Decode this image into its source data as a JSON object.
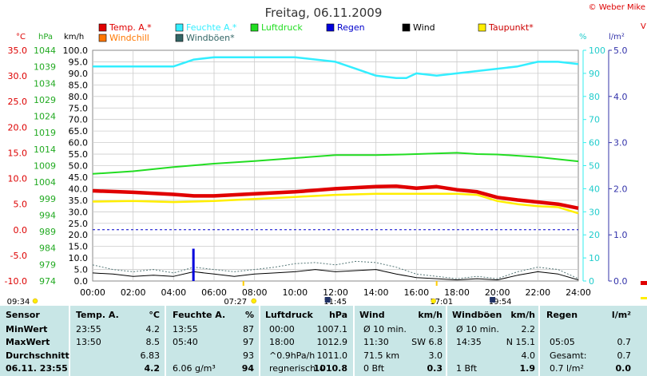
{
  "title": "Freitag, 06.11.2009",
  "copyright": "© Weber Mike",
  "colors": {
    "temp": "#e00000",
    "humidity": "#33eeff",
    "pressure": "#22dd22",
    "rain": "#0000dd",
    "wind": "#000000",
    "dewpoint": "#ffee00",
    "windchill": "#ff7700",
    "gust": "#336666",
    "table_bg": "#c8e6e6",
    "right_axis_blue": "#3333aa"
  },
  "legend": [
    {
      "label": "Temp. A.*",
      "color": "#e00000"
    },
    {
      "label": "Feuchte A.*",
      "color": "#33eeff"
    },
    {
      "label": "Luftdruck",
      "color": "#22dd22"
    },
    {
      "label": "Regen",
      "color": "#0000dd"
    },
    {
      "label": "Wind",
      "color": "#000000"
    },
    {
      "label": "Taupunkt*",
      "color": "#ffee00"
    },
    {
      "label": "Windchill",
      "color": "#ff7700"
    },
    {
      "label": "Windböen*",
      "color": "#336666"
    }
  ],
  "axis_units": {
    "temp": "°C",
    "pressure": "hPa",
    "wind": "km/h",
    "humidity": "%",
    "rain": "l/m²"
  },
  "chart_data": {
    "type": "line",
    "x_ticks": [
      "00:00",
      "02:00",
      "04:00",
      "06:00",
      "08:00",
      "10:00",
      "12:00",
      "14:00",
      "16:00",
      "18:00",
      "20:00",
      "22:00",
      "24:00"
    ],
    "axes": {
      "temp": {
        "ticks": [
          "35.0",
          "30.0",
          "25.0",
          "20.0",
          "15.0",
          "10.0",
          "5.0",
          "0.0",
          "-5.0",
          "-10.0"
        ],
        "ylim": [
          -10,
          35
        ]
      },
      "pressure": {
        "ticks": [
          "1044",
          "1039",
          "1034",
          "1029",
          "1024",
          "1019",
          "1014",
          "1009",
          "1004",
          "999",
          "994",
          "989",
          "984",
          "979",
          "974"
        ],
        "ylim": [
          974,
          1044
        ]
      },
      "wind": {
        "ticks": [
          "100.0",
          "95.0",
          "90.0",
          "85.0",
          "80.0",
          "75.0",
          "70.0",
          "65.0",
          "60.0",
          "55.0",
          "50.0",
          "45.0",
          "40.0",
          "35.0",
          "30.0",
          "25.0",
          "20.0",
          "15.0",
          "10.0",
          "5.0",
          "0.0"
        ],
        "ylim": [
          0,
          100
        ]
      },
      "humidity": {
        "ticks": [
          "100",
          "90",
          "80",
          "70",
          "60",
          "50",
          "40",
          "30",
          "20",
          "10",
          "0"
        ],
        "ylim": [
          0,
          100
        ]
      },
      "rain": {
        "ticks": [
          "5.0",
          "4.0",
          "3.0",
          "2.0",
          "1.0",
          "0.0"
        ],
        "ylim": [
          0,
          5
        ]
      }
    },
    "series": [
      {
        "name": "Feuchte A.*",
        "axis": "humidity",
        "x": [
          0,
          4,
          5,
          6,
          10,
          12,
          13,
          14,
          15,
          15.5,
          16,
          17,
          18,
          19,
          20,
          21,
          22,
          23,
          24
        ],
        "values": [
          93,
          93,
          96,
          97,
          97,
          95,
          92,
          89,
          88,
          88,
          90,
          89,
          90,
          91,
          92,
          93,
          95,
          95,
          94
        ]
      },
      {
        "name": "Luftdruck",
        "axis": "pressure",
        "x": [
          0,
          2,
          4,
          6,
          8,
          10,
          12,
          14,
          16,
          18,
          19,
          20,
          22,
          24
        ],
        "values": [
          1006.5,
          1007.3,
          1008.6,
          1009.6,
          1010.4,
          1011.3,
          1012.2,
          1012.2,
          1012.5,
          1012.9,
          1012.5,
          1012.4,
          1011.6,
          1010.3
        ]
      },
      {
        "name": "Temp. A.*",
        "axis": "temp",
        "x": [
          0,
          2,
          4,
          5,
          6,
          8,
          10,
          12,
          14,
          15,
          16,
          17,
          18,
          19,
          20,
          21,
          22,
          23,
          24
        ],
        "values": [
          7.6,
          7.3,
          6.9,
          6.6,
          6.6,
          7.0,
          7.4,
          8.0,
          8.4,
          8.5,
          8.1,
          8.4,
          7.8,
          7.4,
          6.3,
          5.8,
          5.4,
          5.0,
          4.2
        ]
      },
      {
        "name": "Taupunkt*",
        "axis": "temp",
        "x": [
          0,
          2,
          4,
          6,
          8,
          10,
          12,
          14,
          16,
          18,
          19,
          20,
          21,
          22,
          23,
          24
        ],
        "values": [
          5.5,
          5.6,
          5.4,
          5.6,
          6.0,
          6.4,
          6.8,
          7.0,
          7.0,
          7.0,
          6.8,
          5.6,
          5.0,
          4.6,
          4.4,
          3.2
        ]
      },
      {
        "name": "Regen",
        "axis": "rain",
        "type": "bar",
        "x": [
          4.98
        ],
        "values": [
          0.7
        ]
      },
      {
        "name": "Wind",
        "axis": "wind",
        "x": [
          0,
          1,
          2,
          3,
          4,
          5,
          6,
          7,
          8,
          9,
          10,
          11,
          12,
          13,
          14,
          15,
          16,
          17,
          18,
          19,
          20,
          21,
          22,
          23,
          24
        ],
        "values": [
          3.5,
          3,
          2,
          2.5,
          2,
          4,
          3,
          2,
          3,
          3.5,
          4,
          5,
          4,
          4.5,
          5,
          3,
          1.5,
          1,
          0.5,
          1,
          0.5,
          2.5,
          4,
          3,
          0.5
        ]
      },
      {
        "name": "Windböen*",
        "axis": "wind",
        "x": [
          0,
          1,
          2,
          3,
          4,
          5,
          6,
          7,
          8,
          9,
          10,
          11,
          12,
          13,
          14,
          15,
          16,
          17,
          18,
          19,
          20,
          21,
          22,
          23,
          24
        ],
        "values": [
          7,
          5,
          4,
          5,
          3.5,
          6,
          5,
          4,
          5,
          6,
          7.5,
          8,
          7,
          8.5,
          8,
          6,
          3,
          2,
          1,
          2,
          1,
          4,
          6,
          5,
          1
        ]
      }
    ],
    "reference_line": {
      "axis": "temp",
      "value": 0
    },
    "events": [
      {
        "label": "09:34",
        "kind": "sunrise-sun"
      },
      {
        "label": "07:27",
        "kind": "sunrise"
      },
      {
        "label": "11:45",
        "kind": "moon"
      },
      {
        "label": "17:01",
        "kind": "sunset"
      },
      {
        "label": "19:54",
        "kind": "moon"
      }
    ]
  },
  "table": {
    "headers": {
      "sensor": "Sensor",
      "temp": "Temp. A.",
      "temp_unit": "°C",
      "hum": "Feuchte A.",
      "hum_unit": "%",
      "press": "Luftdruck",
      "press_unit": "hPa",
      "wind": "Wind",
      "wind_unit": "km/h",
      "gust": "Windböen",
      "gust_unit": "km/h",
      "rain": "Regen",
      "rain_unit": "l/m²"
    },
    "rows": [
      {
        "label": "MinWert",
        "temp_time": "23:55",
        "temp_val": "4.2",
        "hum_time": "13:55",
        "hum_val": "87",
        "press_time": "00:00",
        "press_val": "1007.1",
        "wind_a": "Ø 10 min.",
        "wind_b": "0.3",
        "gust_a": "Ø 10 min.",
        "gust_b": "2.2",
        "rain_a": "",
        "rain_b": ""
      },
      {
        "label": "MaxWert",
        "temp_time": "13:50",
        "temp_val": "8.5",
        "hum_time": "05:40",
        "hum_val": "97",
        "press_time": "18:00",
        "press_val": "1012.9",
        "wind_a": "11:30",
        "wind_b": "SW 6.8",
        "gust_a": "14:35",
        "gust_b": "N 15.1",
        "rain_a": "05:05",
        "rain_b": "0.7"
      },
      {
        "label": "Durchschnitt",
        "temp_time": "",
        "temp_val": "6.83",
        "hum_time": "",
        "hum_val": "93",
        "press_time": "^0.9hPa/h",
        "press_val": "1011.0",
        "wind_a": "71.5 km",
        "wind_b": "3.0",
        "gust_a": "",
        "gust_b": "4.0",
        "rain_a": "Gesamt:",
        "rain_b": "0.7"
      },
      {
        "label": "06.11. 23:55",
        "temp_time": "",
        "temp_val": "4.2",
        "hum_time": "6.06 g/m³",
        "hum_val": "94",
        "press_time": "regnerisch",
        "press_arrow": "↓",
        "press_val": "1010.8",
        "wind_a": "0 Bft",
        "wind_b": "0.3",
        "gust_a": "1 Bft",
        "gust_b": "1.9",
        "rain_a": "0.7 l/m²",
        "rain_b": "0.0"
      }
    ]
  }
}
